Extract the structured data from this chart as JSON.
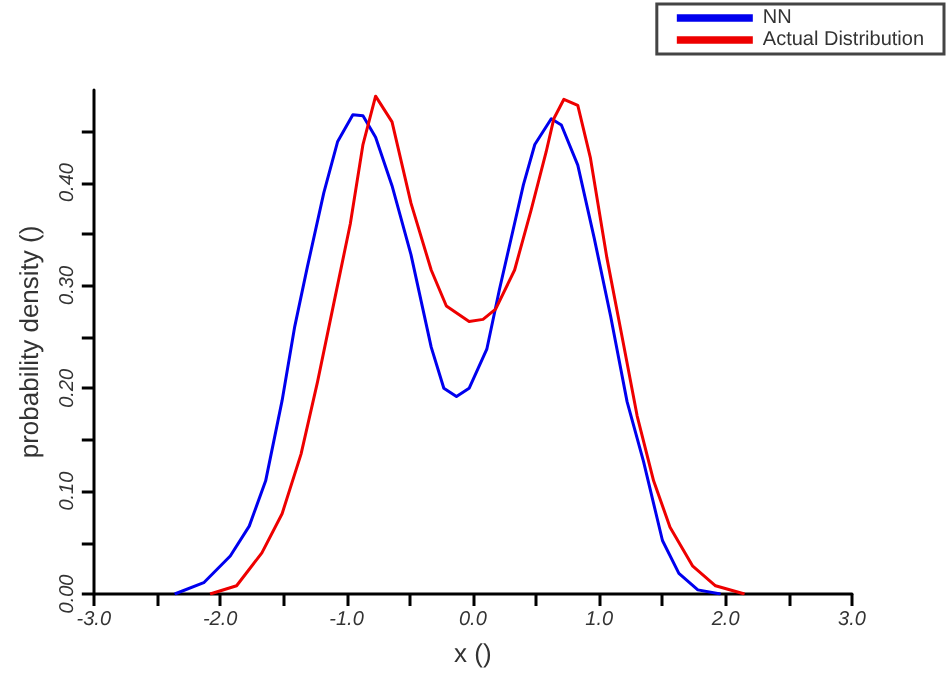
{
  "chart_data": {
    "type": "line",
    "xlabel": "x ()",
    "ylabel": "probability density ()",
    "xlim": [
      -3,
      3
    ],
    "ylim": [
      0,
      0.49
    ],
    "xticks": [
      {
        "value": -3,
        "label": "-3.0"
      },
      {
        "value": -2.5,
        "label": null
      },
      {
        "value": -2,
        "label": "-2.0"
      },
      {
        "value": -1.5,
        "label": null
      },
      {
        "value": -1,
        "label": "-1.0"
      },
      {
        "value": -0.5,
        "label": null
      },
      {
        "value": 0,
        "label": "0.0"
      },
      {
        "value": 0.5,
        "label": null
      },
      {
        "value": 1,
        "label": "1.0"
      },
      {
        "value": 1.5,
        "label": null
      },
      {
        "value": 2,
        "label": "2.0"
      },
      {
        "value": 2.5,
        "label": null
      },
      {
        "value": 3,
        "label": "3.0"
      }
    ],
    "yticks": [
      {
        "value": 0,
        "label": "0.00"
      },
      {
        "value": 0.05,
        "label": null
      },
      {
        "value": 0.1,
        "label": "0.10"
      },
      {
        "value": 0.15,
        "label": null
      },
      {
        "value": 0.2,
        "label": "0.20"
      },
      {
        "value": 0.25,
        "label": null
      },
      {
        "value": 0.3,
        "label": "0.30"
      },
      {
        "value": 0.35,
        "label": null
      },
      {
        "value": 0.4,
        "label": "0.40"
      },
      {
        "value": 0.45,
        "label": null
      }
    ],
    "grid": false,
    "legend": "top right",
    "marker": "none",
    "line_style": "solid",
    "series": [
      {
        "name": "NN",
        "color": "#0000ee",
        "x": [
          -2.36,
          -2.13,
          -1.92,
          -1.77,
          -1.64,
          -1.51,
          -1.41,
          -1.31,
          -1.18,
          -1.07,
          -0.95,
          -0.87,
          -0.77,
          -0.64,
          -0.49,
          -0.33,
          -0.23,
          -0.13,
          -0.03,
          0.11,
          0.21,
          0.4,
          0.49,
          0.62,
          0.7,
          0.83,
          0.96,
          1.09,
          1.22,
          1.35,
          1.5,
          1.63,
          1.78,
          1.96
        ],
        "values": [
          0,
          0.011,
          0.037,
          0.066,
          0.11,
          0.188,
          0.26,
          0.318,
          0.39,
          0.44,
          0.466,
          0.465,
          0.444,
          0.397,
          0.33,
          0.24,
          0.2,
          0.192,
          0.2,
          0.238,
          0.296,
          0.398,
          0.437,
          0.462,
          0.456,
          0.417,
          0.346,
          0.27,
          0.187,
          0.129,
          0.052,
          0.02,
          0.004,
          0
        ]
      },
      {
        "name": "Actual Distribution",
        "color": "#ee0000",
        "x": [
          -2.08,
          -1.87,
          -1.67,
          -1.51,
          -1.36,
          -1.23,
          -1.1,
          -0.97,
          -0.87,
          -0.77,
          -0.64,
          -0.49,
          -0.33,
          -0.21,
          -0.03,
          0.08,
          0.18,
          0.33,
          0.46,
          0.58,
          0.64,
          0.72,
          0.83,
          0.93,
          1.06,
          1.19,
          1.3,
          1.43,
          1.56,
          1.74,
          1.92,
          2.15
        ],
        "values": [
          0,
          0.008,
          0.04,
          0.078,
          0.136,
          0.206,
          0.283,
          0.36,
          0.437,
          0.484,
          0.459,
          0.38,
          0.315,
          0.28,
          0.265,
          0.267,
          0.277,
          0.315,
          0.373,
          0.43,
          0.462,
          0.481,
          0.475,
          0.424,
          0.327,
          0.244,
          0.173,
          0.11,
          0.065,
          0.027,
          0.008,
          0
        ]
      }
    ]
  }
}
